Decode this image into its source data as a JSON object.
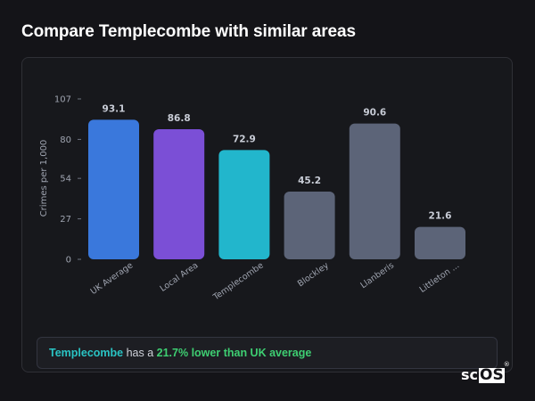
{
  "page": {
    "title": "Compare Templecombe with similar areas"
  },
  "summary": {
    "place": "Templecombe",
    "connector": " has a ",
    "highlight": "21.7% lower than UK average"
  },
  "logo": {
    "sc": "sc",
    "os": "OS",
    "mark": "®"
  },
  "colors": {
    "uk_average": "#3a78dc",
    "local_area": "#7b4fd6",
    "templecombe": "#22b6cc",
    "similar": "#5c6478",
    "value_label": "#c8ccd6",
    "axis_text": "#9fa4b0",
    "summary_place": "#2ac4c4",
    "summary_highlight": "#3ecf72"
  },
  "chart_data": {
    "type": "bar",
    "title": "",
    "xlabel": "",
    "ylabel": "Crimes per 1,000",
    "ylim": [
      0,
      107
    ],
    "yticks": [
      0,
      27,
      54,
      80,
      107
    ],
    "grid": false,
    "categories": [
      "UK Average",
      "Local Area",
      "Templecombe",
      "Blockley",
      "Llanberis",
      "Littleton ..."
    ],
    "values": [
      93.1,
      86.8,
      72.9,
      45.2,
      90.6,
      21.6
    ],
    "value_labels": [
      "93.1",
      "86.8",
      "72.9",
      "45.2",
      "90.6",
      "21.6"
    ],
    "bar_colors": [
      "#3a78dc",
      "#7b4fd6",
      "#22b6cc",
      "#5c6478",
      "#5c6478",
      "#5c6478"
    ]
  }
}
